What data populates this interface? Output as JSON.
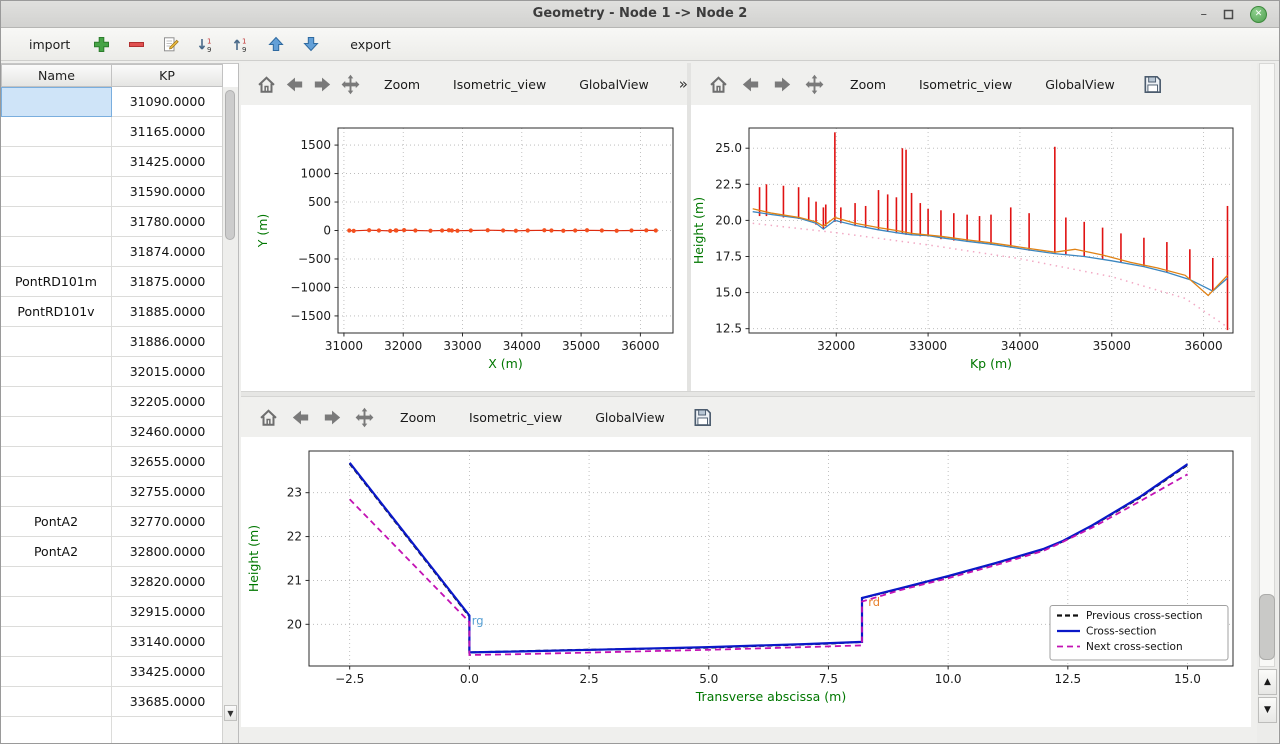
{
  "window": {
    "title": "Geometry - Node 1 -> Node 2"
  },
  "app_toolbar": {
    "import_label": "import",
    "export_label": "export",
    "icons": [
      "add-icon",
      "remove-icon",
      "edit-icon",
      "sort-descending-icon",
      "sort-ascending-icon",
      "move-up-icon",
      "move-down-icon"
    ]
  },
  "plot_toolbar": {
    "zoom": "Zoom",
    "isometric": "Isometric_view",
    "globalview": "GlobalView",
    "overflow": "»",
    "icons": [
      "home-icon",
      "back-icon",
      "forward-icon",
      "pan-icon",
      "save-icon"
    ]
  },
  "colors": {
    "selection_bg": "#cfe4f8",
    "axis_label_green": "#007700",
    "cross_section_red": "#e01212",
    "profile_blue": "#3c87c0",
    "profile_orange": "#e08214",
    "current_section_blue": "#0a18c8",
    "next_section_magenta": "#c313b4"
  },
  "table": {
    "headers": {
      "name": "Name",
      "kp": "KP"
    },
    "selected_row": 0,
    "rows": [
      {
        "name": "",
        "kp": "31090.0000"
      },
      {
        "name": "",
        "kp": "31165.0000"
      },
      {
        "name": "",
        "kp": "31425.0000"
      },
      {
        "name": "",
        "kp": "31590.0000"
      },
      {
        "name": "",
        "kp": "31780.0000"
      },
      {
        "name": "",
        "kp": "31874.0000"
      },
      {
        "name": "PontRD101m",
        "kp": "31875.0000"
      },
      {
        "name": "PontRD101v",
        "kp": "31885.0000"
      },
      {
        "name": "",
        "kp": "31886.0000"
      },
      {
        "name": "",
        "kp": "32015.0000"
      },
      {
        "name": "",
        "kp": "32205.0000"
      },
      {
        "name": "",
        "kp": "32460.0000"
      },
      {
        "name": "",
        "kp": "32655.0000"
      },
      {
        "name": "",
        "kp": "32755.0000"
      },
      {
        "name": "PontA2",
        "kp": "32770.0000"
      },
      {
        "name": "PontA2",
        "kp": "32800.0000"
      },
      {
        "name": "",
        "kp": "32820.0000"
      },
      {
        "name": "",
        "kp": "32915.0000"
      },
      {
        "name": "",
        "kp": "33140.0000"
      },
      {
        "name": "",
        "kp": "33425.0000"
      },
      {
        "name": "",
        "kp": "33685.0000"
      }
    ]
  },
  "chart_data": [
    {
      "id": "plan-view",
      "type": "line",
      "title": "",
      "xlabel": "X (m)",
      "ylabel": "Y (m)",
      "xlim": [
        30900,
        36550
      ],
      "ylim": [
        -1800,
        1800
      ],
      "xticks": [
        31000,
        32000,
        33000,
        34000,
        35000,
        36000
      ],
      "xtick_labels": [
        "31000",
        "32000",
        "33000",
        "34000",
        "35000",
        "36000"
      ],
      "yticks": [
        -1500,
        -1000,
        -500,
        0,
        500,
        1000,
        1500
      ],
      "ytick_labels": [
        "−1500",
        "−1000",
        "−500",
        "0",
        "500",
        "1000",
        "1500"
      ],
      "grid": true,
      "series": [
        {
          "name": "river-axis",
          "color": "#dd2b10",
          "width": 1.2,
          "marker": {
            "color": "#f4501e",
            "r": 2.1
          },
          "points": [
            [
              31090,
              0
            ],
            [
              31165,
              -6
            ],
            [
              31425,
              5
            ],
            [
              31590,
              0
            ],
            [
              31780,
              -7
            ],
            [
              31874,
              3
            ],
            [
              31885,
              0
            ],
            [
              32015,
              6
            ],
            [
              32205,
              0
            ],
            [
              32460,
              -5
            ],
            [
              32655,
              0
            ],
            [
              32770,
              4
            ],
            [
              32820,
              0
            ],
            [
              32915,
              -4
            ],
            [
              33140,
              0
            ],
            [
              33425,
              5
            ],
            [
              33685,
              0
            ],
            [
              33900,
              -5
            ],
            [
              34100,
              0
            ],
            [
              34380,
              4
            ],
            [
              34500,
              0
            ],
            [
              34700,
              -4
            ],
            [
              34900,
              0
            ],
            [
              35100,
              4
            ],
            [
              35350,
              0
            ],
            [
              35600,
              -4
            ],
            [
              35850,
              0
            ],
            [
              36100,
              3
            ],
            [
              36260,
              0
            ]
          ]
        }
      ]
    },
    {
      "id": "longitudinal-profile",
      "type": "line",
      "title": "",
      "xlabel": "Kp (m)",
      "ylabel": "Height (m)",
      "xlim": [
        31050,
        36320
      ],
      "ylim": [
        12.2,
        26.4
      ],
      "xticks": [
        32000,
        33000,
        34000,
        35000,
        36000
      ],
      "xtick_labels": [
        "32000",
        "33000",
        "34000",
        "35000",
        "36000"
      ],
      "yticks": [
        12.5,
        15.0,
        17.5,
        20.0,
        22.5,
        25.0
      ],
      "ytick_labels": [
        "12.5",
        "15.0",
        "17.5",
        "20.0",
        "22.5",
        "25.0"
      ],
      "grid": true,
      "series": [
        {
          "name": "reference-line",
          "color": "#f2a9c4",
          "width": 1.5,
          "dash": "1.5,4.5",
          "points": [
            [
              31090,
              19.8
            ],
            [
              32000,
              19.15
            ],
            [
              33000,
              18.3
            ],
            [
              34000,
              17.35
            ],
            [
              35000,
              16.1
            ],
            [
              35800,
              14.6
            ],
            [
              36260,
              12.6
            ]
          ]
        },
        {
          "name": "cross-section-extents",
          "color": "#e01212",
          "width": 1.6,
          "bars": [
            [
              31165,
              20.3,
              22.3
            ],
            [
              31240,
              20.3,
              22.5
            ],
            [
              31425,
              20.2,
              22.4
            ],
            [
              31590,
              20.1,
              22.3
            ],
            [
              31700,
              20.0,
              21.6
            ],
            [
              31780,
              19.7,
              21.3
            ],
            [
              31860,
              19.4,
              20.9
            ],
            [
              31886,
              19.6,
              21.1
            ],
            [
              31985,
              19.9,
              26.1
            ],
            [
              32050,
              19.8,
              20.9
            ],
            [
              32205,
              19.6,
              21.2
            ],
            [
              32320,
              19.5,
              21.0
            ],
            [
              32460,
              19.3,
              22.1
            ],
            [
              32560,
              19.2,
              21.8
            ],
            [
              32655,
              19.1,
              21.6
            ],
            [
              32720,
              19.1,
              25.0
            ],
            [
              32760,
              19.0,
              24.9
            ],
            [
              32820,
              19.0,
              21.9
            ],
            [
              32915,
              18.9,
              21.2
            ],
            [
              33000,
              18.9,
              20.8
            ],
            [
              33140,
              18.7,
              20.7
            ],
            [
              33280,
              18.6,
              20.5
            ],
            [
              33425,
              18.5,
              20.4
            ],
            [
              33560,
              18.4,
              20.3
            ],
            [
              33685,
              18.3,
              20.4
            ],
            [
              33900,
              18.1,
              20.9
            ],
            [
              34100,
              17.9,
              20.5
            ],
            [
              34380,
              17.7,
              25.1
            ],
            [
              34500,
              17.6,
              20.2
            ],
            [
              34700,
              17.5,
              19.9
            ],
            [
              34900,
              17.3,
              19.5
            ],
            [
              35100,
              17.1,
              19.1
            ],
            [
              35350,
              16.8,
              18.8
            ],
            [
              35600,
              16.4,
              18.5
            ],
            [
              35850,
              15.9,
              18.0
            ],
            [
              36100,
              15.1,
              17.4
            ],
            [
              36260,
              12.4,
              21.0
            ]
          ]
        },
        {
          "name": "bank-line-blue",
          "color": "#3c87c0",
          "width": 1.3,
          "points": [
            [
              31090,
              20.6
            ],
            [
              31300,
              20.4
            ],
            [
              31600,
              20.15
            ],
            [
              31780,
              19.8
            ],
            [
              31860,
              19.4
            ],
            [
              31985,
              20.0
            ],
            [
              32205,
              19.65
            ],
            [
              32460,
              19.35
            ],
            [
              32655,
              19.15
            ],
            [
              32820,
              19.0
            ],
            [
              33000,
              18.95
            ],
            [
              33140,
              18.8
            ],
            [
              33425,
              18.55
            ],
            [
              33685,
              18.35
            ],
            [
              33900,
              18.15
            ],
            [
              34100,
              17.95
            ],
            [
              34380,
              17.7
            ],
            [
              34700,
              17.5
            ],
            [
              35000,
              17.2
            ],
            [
              35350,
              16.8
            ],
            [
              35600,
              16.4
            ],
            [
              35850,
              15.9
            ],
            [
              36100,
              15.1
            ],
            [
              36260,
              16.0
            ]
          ]
        },
        {
          "name": "bank-line-orange",
          "color": "#e08214",
          "width": 1.3,
          "points": [
            [
              31090,
              20.8
            ],
            [
              31300,
              20.5
            ],
            [
              31600,
              20.2
            ],
            [
              31780,
              19.9
            ],
            [
              31860,
              19.6
            ],
            [
              31985,
              20.2
            ],
            [
              32205,
              19.8
            ],
            [
              32460,
              19.5
            ],
            [
              32655,
              19.3
            ],
            [
              32820,
              19.1
            ],
            [
              33140,
              18.9
            ],
            [
              33425,
              18.65
            ],
            [
              33685,
              18.45
            ],
            [
              33900,
              18.25
            ],
            [
              34100,
              18.05
            ],
            [
              34380,
              17.8
            ],
            [
              34600,
              18.0
            ],
            [
              34900,
              17.6
            ],
            [
              35200,
              17.1
            ],
            [
              35500,
              16.7
            ],
            [
              35800,
              16.2
            ],
            [
              36050,
              14.8
            ],
            [
              36260,
              16.2
            ]
          ]
        }
      ]
    },
    {
      "id": "cross-section",
      "type": "line",
      "title": "",
      "xlabel": "Transverse abscissa (m)",
      "ylabel": "Height (m)",
      "xlim": [
        -3.35,
        15.95
      ],
      "ylim": [
        19.05,
        23.95
      ],
      "xticks": [
        -2.5,
        0.0,
        2.5,
        5.0,
        7.5,
        10.0,
        12.5,
        15.0
      ],
      "xtick_labels": [
        "−2.5",
        "0.0",
        "2.5",
        "5.0",
        "7.5",
        "10.0",
        "12.5",
        "15.0"
      ],
      "yticks": [
        20,
        21,
        22,
        23
      ],
      "ytick_labels": [
        "20",
        "21",
        "22",
        "23"
      ],
      "grid": true,
      "legend": {
        "position": "bottom-right",
        "entries": [
          {
            "label": "Previous cross-section",
            "color": "#111111",
            "dash": "5,3",
            "width": 2.2
          },
          {
            "label": "Cross-section",
            "color": "#0a18c8",
            "dash": "",
            "width": 2.2
          },
          {
            "label": "Next cross-section",
            "color": "#c313b4",
            "dash": "6,4",
            "width": 1.8
          }
        ]
      },
      "annotations": [
        {
          "text": "rg",
          "x": 0.05,
          "y": 20.0,
          "color": "#559fd4"
        },
        {
          "text": "rd",
          "x": 8.33,
          "y": 20.42,
          "color": "#e8822e"
        }
      ],
      "series": [
        {
          "name": "previous-cross-section",
          "color": "#111111",
          "width": 2.0,
          "dash": "5,3",
          "points": [
            [
              -2.5,
              23.66
            ],
            [
              0,
              20.18
            ],
            [
              0,
              19.36
            ],
            [
              2,
              19.41
            ],
            [
              5,
              19.47
            ],
            [
              7.5,
              19.56
            ],
            [
              8.2,
              19.6
            ],
            [
              8.2,
              20.6
            ],
            [
              9,
              20.81
            ],
            [
              10,
              21.09
            ],
            [
              11,
              21.39
            ],
            [
              12,
              21.71
            ],
            [
              12.4,
              21.89
            ],
            [
              13,
              22.24
            ],
            [
              14,
              22.88
            ],
            [
              15,
              23.63
            ]
          ]
        },
        {
          "name": "current-cross-section",
          "color": "#0a18c8",
          "width": 2.2,
          "points": [
            [
              -2.5,
              23.68
            ],
            [
              0,
              20.2
            ],
            [
              0,
              19.36
            ],
            [
              1,
              19.38
            ],
            [
              3,
              19.43
            ],
            [
              5,
              19.48
            ],
            [
              7,
              19.55
            ],
            [
              8.2,
              19.6
            ],
            [
              8.2,
              20.6
            ],
            [
              9,
              20.82
            ],
            [
              10,
              21.1
            ],
            [
              11,
              21.4
            ],
            [
              12,
              21.72
            ],
            [
              12.4,
              21.9
            ],
            [
              13,
              22.25
            ],
            [
              14,
              22.9
            ],
            [
              15,
              23.65
            ]
          ]
        },
        {
          "name": "next-cross-section",
          "color": "#c313b4",
          "width": 1.8,
          "dash": "6,4",
          "points": [
            [
              -2.5,
              22.85
            ],
            [
              0,
              20.05
            ],
            [
              0,
              19.3
            ],
            [
              1,
              19.32
            ],
            [
              3,
              19.37
            ],
            [
              5,
              19.42
            ],
            [
              7,
              19.48
            ],
            [
              8.2,
              19.52
            ],
            [
              8.2,
              20.52
            ],
            [
              9,
              20.78
            ],
            [
              10,
              21.05
            ],
            [
              11,
              21.35
            ],
            [
              12,
              21.68
            ],
            [
              12.4,
              21.88
            ],
            [
              13,
              22.2
            ],
            [
              14,
              22.8
            ],
            [
              15,
              23.42
            ]
          ]
        }
      ]
    }
  ]
}
